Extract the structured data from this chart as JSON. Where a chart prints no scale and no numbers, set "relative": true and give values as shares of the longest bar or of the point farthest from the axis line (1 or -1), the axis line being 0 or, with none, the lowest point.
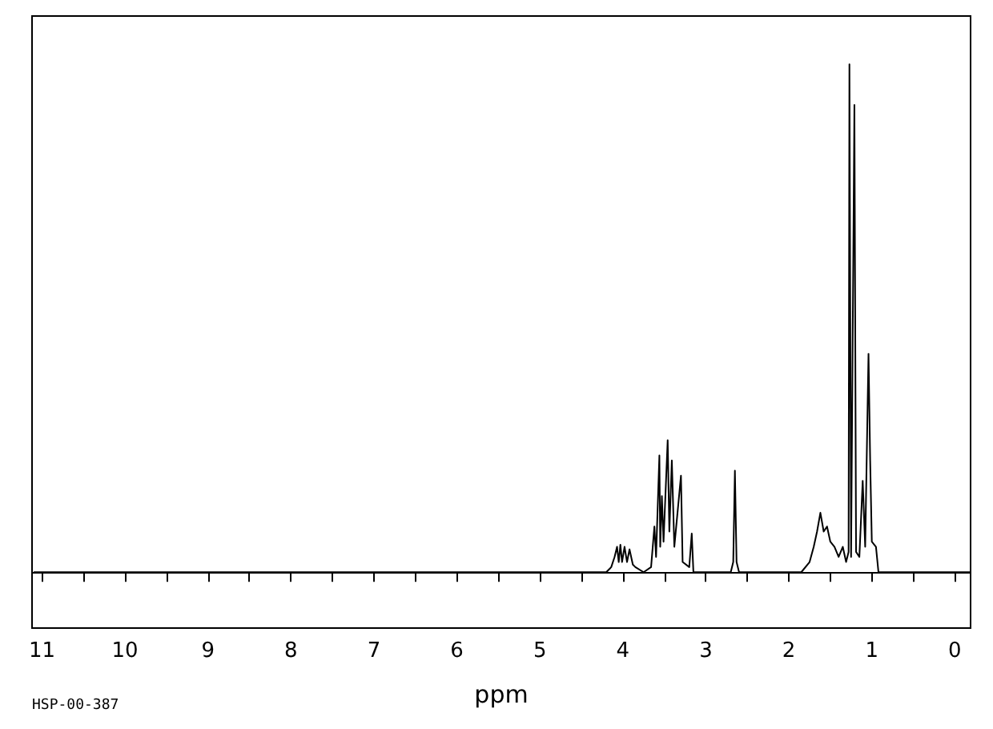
{
  "chart_data": {
    "type": "line",
    "relative": true,
    "xlabel": "ppm",
    "annotations": [
      "HSP-00-387"
    ],
    "xlim": [
      11.12,
      -0.19
    ],
    "xticks": [
      11,
      {
        "value": 10.5,
        "label": null
      },
      10,
      {
        "value": 9.5,
        "label": null
      },
      9,
      {
        "value": 8.5,
        "label": null
      },
      8,
      {
        "value": 7.5,
        "label": null
      },
      7,
      {
        "value": 6.5,
        "label": null
      },
      6,
      {
        "value": 5.5,
        "label": null
      },
      5,
      {
        "value": 4.5,
        "label": null
      },
      4,
      {
        "value": 3.5,
        "label": null
      },
      3,
      {
        "value": 2.5,
        "label": null
      },
      2,
      {
        "value": 1.5,
        "label": null
      },
      1,
      {
        "value": 0.5,
        "label": null
      },
      0
    ],
    "marker": "none",
    "line_style": "solid",
    "series": [
      {
        "color": "#000000",
        "x": [
          11.1,
          4.2,
          4.14,
          4.1,
          4.07,
          4.05,
          4.03,
          4.01,
          3.98,
          3.95,
          3.92,
          3.88,
          3.85,
          3.75,
          3.66,
          3.62,
          3.6,
          3.56,
          3.55,
          3.53,
          3.51,
          3.46,
          3.44,
          3.41,
          3.38,
          3.3,
          3.28,
          3.2,
          3.17,
          3.15,
          2.7,
          2.67,
          2.65,
          2.63,
          2.6,
          1.85,
          1.75,
          1.7,
          1.66,
          1.62,
          1.58,
          1.54,
          1.5,
          1.45,
          1.4,
          1.35,
          1.31,
          1.28,
          1.27,
          1.25,
          1.21,
          1.19,
          1.15,
          1.11,
          1.08,
          1.04,
          1.02,
          1.0,
          0.95,
          0.92,
          -0.19
        ],
        "values": [
          0,
          0,
          0.01,
          0.03,
          0.05,
          0.02,
          0.054,
          0.02,
          0.05,
          0.02,
          0.045,
          0.015,
          0.01,
          0,
          0.01,
          0.09,
          0.03,
          0.23,
          0.05,
          0.15,
          0.06,
          0.26,
          0.08,
          0.22,
          0.05,
          0.19,
          0.02,
          0.01,
          0.076,
          0,
          0,
          0.02,
          0.2,
          0.02,
          0,
          0,
          0.02,
          0.05,
          0.08,
          0.117,
          0.08,
          0.09,
          0.06,
          0.05,
          0.03,
          0.05,
          0.02,
          0.04,
          1,
          0.03,
          0.92,
          0.04,
          0.03,
          0.18,
          0.05,
          0.43,
          0.22,
          0.06,
          0.05,
          0,
          0
        ]
      }
    ]
  }
}
